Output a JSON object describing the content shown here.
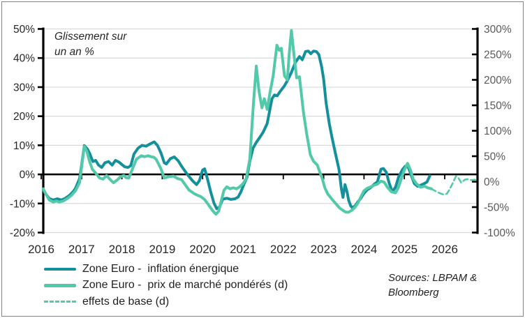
{
  "sources": {
    "line1": "Sources: LBPAM &",
    "line2": "Bloomberg"
  },
  "colors": {
    "dark_teal": "#13909B",
    "light_teal": "#52C9A9",
    "gridline": "#D9D9D9",
    "axis": "#000000",
    "right_axis_labels": "#595959",
    "left_axis_labels": "#262626",
    "frame_border": "#818181"
  },
  "chart_data": {
    "type": "line",
    "title": "",
    "annotation": {
      "line1": "Glissement sur",
      "line2": "un an %"
    },
    "left_axis": {
      "ticks": [
        50,
        40,
        30,
        20,
        10,
        0,
        -10,
        -20
      ],
      "unit": "%",
      "range": [
        -20,
        50
      ]
    },
    "right_axis": {
      "ticks": [
        300,
        250,
        200,
        150,
        100,
        50,
        0,
        -50,
        -100
      ],
      "unit": "%",
      "range": [
        -100,
        300
      ]
    },
    "x_axis": {
      "ticks": [
        2016,
        2017,
        2018,
        2019,
        2020,
        2021,
        2022,
        2023,
        2024,
        2025,
        2026
      ],
      "range": [
        2016,
        2026.85
      ]
    },
    "grid": "horizontal",
    "legend_position": "bottom-left",
    "series": [
      {
        "name": "Zone Euro -  inflation énergique",
        "axis": "left",
        "style": "solid",
        "color": "#13909B",
        "points": [
          [
            2016.05,
            -5.2
          ],
          [
            2016.1,
            -6.5
          ],
          [
            2016.2,
            -8.3
          ],
          [
            2016.3,
            -8.8
          ],
          [
            2016.4,
            -8.4
          ],
          [
            2016.5,
            -8.8
          ],
          [
            2016.6,
            -8.2
          ],
          [
            2016.7,
            -7.2
          ],
          [
            2016.8,
            -5.8
          ],
          [
            2016.85,
            -4.8
          ],
          [
            2016.95,
            -1.5
          ],
          [
            2017.0,
            3.0
          ],
          [
            2017.07,
            9.9
          ],
          [
            2017.15,
            8.6
          ],
          [
            2017.2,
            7.2
          ],
          [
            2017.28,
            4.4
          ],
          [
            2017.35,
            4.8
          ],
          [
            2017.42,
            3.2
          ],
          [
            2017.5,
            2.4
          ],
          [
            2017.58,
            4.0
          ],
          [
            2017.67,
            4.4
          ],
          [
            2017.76,
            3.2
          ],
          [
            2017.84,
            4.8
          ],
          [
            2017.93,
            4.2
          ],
          [
            2018.0,
            3.4
          ],
          [
            2018.07,
            2.6
          ],
          [
            2018.15,
            2.4
          ],
          [
            2018.22,
            3.0
          ],
          [
            2018.3,
            7.0
          ],
          [
            2018.4,
            9.0
          ],
          [
            2018.5,
            10.0
          ],
          [
            2018.6,
            9.7
          ],
          [
            2018.7,
            10.5
          ],
          [
            2018.8,
            11.2
          ],
          [
            2018.88,
            10.0
          ],
          [
            2018.97,
            7.3
          ],
          [
            2019.05,
            4.0
          ],
          [
            2019.1,
            3.6
          ],
          [
            2019.2,
            5.4
          ],
          [
            2019.3,
            6.0
          ],
          [
            2019.4,
            4.6
          ],
          [
            2019.48,
            2.8
          ],
          [
            2019.56,
            1.2
          ],
          [
            2019.65,
            -0.5
          ],
          [
            2019.75,
            -2.2
          ],
          [
            2019.85,
            -3.5
          ],
          [
            2019.92,
            -2.2
          ],
          [
            2020.0,
            1.5
          ],
          [
            2020.05,
            1.9
          ],
          [
            2020.12,
            -1.5
          ],
          [
            2020.2,
            -6.0
          ],
          [
            2020.28,
            -9.8
          ],
          [
            2020.35,
            -11.8
          ],
          [
            2020.42,
            -11.2
          ],
          [
            2020.5,
            -8.5
          ],
          [
            2020.6,
            -8.2
          ],
          [
            2020.7,
            -8.6
          ],
          [
            2020.8,
            -8.4
          ],
          [
            2020.88,
            -7.8
          ],
          [
            2020.95,
            -6.0
          ],
          [
            2021.02,
            -3.5
          ],
          [
            2021.1,
            -1.0
          ],
          [
            2021.17,
            4.5
          ],
          [
            2021.25,
            9.0
          ],
          [
            2021.33,
            11.0
          ],
          [
            2021.42,
            12.8
          ],
          [
            2021.5,
            14.5
          ],
          [
            2021.6,
            17.5
          ],
          [
            2021.72,
            26.0
          ],
          [
            2021.78,
            27.3
          ],
          [
            2021.85,
            27.0
          ],
          [
            2021.92,
            28.5
          ],
          [
            2022.02,
            30.3
          ],
          [
            2022.1,
            32.2
          ],
          [
            2022.2,
            35.1
          ],
          [
            2022.3,
            38.5
          ],
          [
            2022.4,
            40.5
          ],
          [
            2022.47,
            39.4
          ],
          [
            2022.55,
            42.2
          ],
          [
            2022.62,
            42.4
          ],
          [
            2022.68,
            41.5
          ],
          [
            2022.75,
            42.4
          ],
          [
            2022.82,
            42.2
          ],
          [
            2022.88,
            41.2
          ],
          [
            2022.95,
            37.0
          ],
          [
            2023.0,
            32.7
          ],
          [
            2023.06,
            24.6
          ],
          [
            2023.14,
            17.4
          ],
          [
            2023.2,
            13.1
          ],
          [
            2023.28,
            7.9
          ],
          [
            2023.33,
            4.8
          ],
          [
            2023.38,
            1.7
          ],
          [
            2023.44,
            -5.0
          ],
          [
            2023.48,
            -7.9
          ],
          [
            2023.53,
            -3.5
          ],
          [
            2023.58,
            -6.0
          ],
          [
            2023.62,
            -8.9
          ],
          [
            2023.67,
            -10.8
          ],
          [
            2023.71,
            -11.5
          ],
          [
            2023.78,
            -10.8
          ],
          [
            2023.85,
            -9.4
          ],
          [
            2023.92,
            -8.2
          ],
          [
            2024.0,
            -6.5
          ],
          [
            2024.08,
            -5.3
          ],
          [
            2024.16,
            -4.6
          ],
          [
            2024.25,
            -3.4
          ],
          [
            2024.33,
            -2.6
          ],
          [
            2024.42,
            1.8
          ],
          [
            2024.48,
            2.0
          ],
          [
            2024.55,
            0.8
          ],
          [
            2024.62,
            -2.8
          ],
          [
            2024.7,
            -6.0
          ],
          [
            2024.78,
            -4.4
          ],
          [
            2024.86,
            -0.8
          ],
          [
            2024.95,
            1.6
          ],
          [
            2025.02,
            2.8
          ],
          [
            2025.1,
            2.4
          ],
          [
            2025.18,
            -0.7
          ],
          [
            2025.25,
            -3.2
          ],
          [
            2025.33,
            -4.1
          ],
          [
            2025.42,
            -3.6
          ],
          [
            2025.5,
            -3.1
          ],
          [
            2025.56,
            -2.6
          ],
          [
            2025.63,
            -0.5
          ]
        ]
      },
      {
        "name": "Zone Euro -  prix de marché pondérés (d)",
        "axis": "right",
        "style": "solid",
        "color": "#52C9A9",
        "points": [
          [
            2016.05,
            -14
          ],
          [
            2016.1,
            -22
          ],
          [
            2016.2,
            -36
          ],
          [
            2016.3,
            -40
          ],
          [
            2016.38,
            -38
          ],
          [
            2016.45,
            -40
          ],
          [
            2016.55,
            -38
          ],
          [
            2016.65,
            -33
          ],
          [
            2016.75,
            -27
          ],
          [
            2016.85,
            -18
          ],
          [
            2016.95,
            -2
          ],
          [
            2017.02,
            40
          ],
          [
            2017.07,
            69
          ],
          [
            2017.13,
            60
          ],
          [
            2017.2,
            39
          ],
          [
            2017.27,
            24
          ],
          [
            2017.35,
            17
          ],
          [
            2017.45,
            7
          ],
          [
            2017.53,
            5
          ],
          [
            2017.62,
            12
          ],
          [
            2017.7,
            5
          ],
          [
            2017.79,
            -2
          ],
          [
            2017.88,
            3
          ],
          [
            2017.97,
            10
          ],
          [
            2018.05,
            12
          ],
          [
            2018.1,
            8
          ],
          [
            2018.17,
            7
          ],
          [
            2018.24,
            21
          ],
          [
            2018.36,
            44
          ],
          [
            2018.48,
            51
          ],
          [
            2018.56,
            49
          ],
          [
            2018.65,
            51
          ],
          [
            2018.72,
            49
          ],
          [
            2018.79,
            48
          ],
          [
            2018.85,
            44
          ],
          [
            2018.97,
            25
          ],
          [
            2019.05,
            7
          ],
          [
            2019.17,
            10
          ],
          [
            2019.28,
            11
          ],
          [
            2019.38,
            6
          ],
          [
            2019.48,
            4
          ],
          [
            2019.55,
            -4
          ],
          [
            2019.66,
            -16
          ],
          [
            2019.78,
            -23
          ],
          [
            2019.88,
            -27
          ],
          [
            2019.95,
            -29
          ],
          [
            2020.05,
            -35
          ],
          [
            2020.15,
            -46
          ],
          [
            2020.25,
            -57
          ],
          [
            2020.33,
            -64
          ],
          [
            2020.4,
            -58
          ],
          [
            2020.47,
            -35
          ],
          [
            2020.53,
            -17
          ],
          [
            2020.6,
            -10
          ],
          [
            2020.68,
            -14
          ],
          [
            2020.76,
            -12
          ],
          [
            2020.84,
            -14
          ],
          [
            2020.92,
            -10
          ],
          [
            2021.0,
            -4
          ],
          [
            2021.08,
            6
          ],
          [
            2021.17,
            44
          ],
          [
            2021.26,
            153
          ],
          [
            2021.33,
            227
          ],
          [
            2021.4,
            177
          ],
          [
            2021.47,
            145
          ],
          [
            2021.53,
            163
          ],
          [
            2021.6,
            142
          ],
          [
            2021.67,
            175
          ],
          [
            2021.75,
            208
          ],
          [
            2021.84,
            268
          ],
          [
            2021.9,
            258
          ],
          [
            2021.95,
            262
          ],
          [
            2022.03,
            208
          ],
          [
            2022.1,
            200
          ],
          [
            2022.15,
            255
          ],
          [
            2022.2,
            297
          ],
          [
            2022.27,
            245
          ],
          [
            2022.33,
            204
          ],
          [
            2022.4,
            206
          ],
          [
            2022.5,
            136
          ],
          [
            2022.58,
            94
          ],
          [
            2022.67,
            53
          ],
          [
            2022.75,
            40
          ],
          [
            2022.84,
            33
          ],
          [
            2022.9,
            20
          ],
          [
            2022.97,
            5
          ],
          [
            2023.03,
            -12
          ],
          [
            2023.1,
            -24
          ],
          [
            2023.2,
            -34
          ],
          [
            2023.3,
            -43
          ],
          [
            2023.4,
            -52
          ],
          [
            2023.47,
            -56
          ],
          [
            2023.55,
            -60
          ],
          [
            2023.62,
            -60
          ],
          [
            2023.7,
            -56
          ],
          [
            2023.78,
            -50
          ],
          [
            2023.85,
            -42
          ],
          [
            2023.92,
            -30
          ],
          [
            2024.0,
            -18
          ],
          [
            2024.08,
            -13
          ],
          [
            2024.17,
            -10
          ],
          [
            2024.25,
            -7
          ],
          [
            2024.33,
            -5
          ],
          [
            2024.42,
            1
          ],
          [
            2024.5,
            -1
          ],
          [
            2024.58,
            -11
          ],
          [
            2024.68,
            -20
          ],
          [
            2024.78,
            -22
          ],
          [
            2024.85,
            -12
          ],
          [
            2024.92,
            5
          ],
          [
            2025.0,
            23
          ],
          [
            2025.08,
            36
          ],
          [
            2025.15,
            23
          ],
          [
            2025.22,
            5
          ],
          [
            2025.3,
            -4
          ],
          [
            2025.4,
            -11
          ],
          [
            2025.5,
            -9
          ],
          [
            2025.58,
            -12
          ],
          [
            2025.67,
            -14
          ]
        ]
      },
      {
        "name": "effets de base (d)",
        "axis": "right",
        "style": "dashed",
        "color": "#52C9A9",
        "points": [
          [
            2025.67,
            -14
          ],
          [
            2025.76,
            -18
          ],
          [
            2025.86,
            -22
          ],
          [
            2025.96,
            -25
          ],
          [
            2026.05,
            -24
          ],
          [
            2026.1,
            -18
          ],
          [
            2026.18,
            -6
          ],
          [
            2026.28,
            11
          ],
          [
            2026.34,
            7
          ],
          [
            2026.41,
            -2
          ],
          [
            2026.5,
            4
          ],
          [
            2026.58,
            5
          ],
          [
            2026.66,
            3
          ],
          [
            2026.74,
            4
          ],
          [
            2026.8,
            1
          ]
        ]
      }
    ]
  }
}
